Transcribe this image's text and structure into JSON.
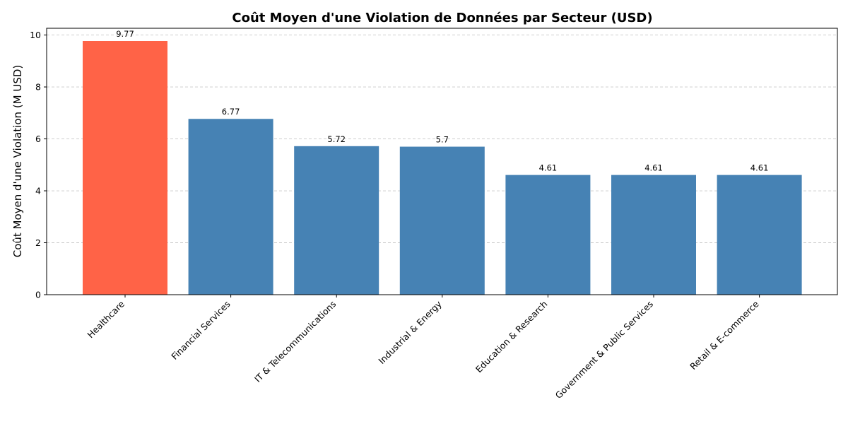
{
  "chart_data": {
    "type": "bar",
    "title": "Coût Moyen d'une Violation de Données par Secteur (USD)",
    "xlabel": "",
    "ylabel": "Coût Moyen d'une Violation (M USD)",
    "categories": [
      "Healthcare",
      "Financial Services",
      "IT & Telecommunications",
      "Industrial & Energy",
      "Education & Research",
      "Government & Public Services",
      "Retail & E-commerce"
    ],
    "values": [
      9.77,
      6.77,
      5.72,
      5.7,
      4.61,
      4.61,
      4.61
    ],
    "data_labels": [
      "9.77",
      "6.77",
      "5.72",
      "5.7",
      "4.61",
      "4.61",
      "4.61"
    ],
    "bar_colors": [
      "#FF6347",
      "#4682B4",
      "#4682B4",
      "#4682B4",
      "#4682B4",
      "#4682B4",
      "#4682B4"
    ],
    "ylim": [
      0,
      10.26
    ],
    "yticks": [
      0,
      2,
      4,
      6,
      8,
      10
    ],
    "grid": "y-dashed",
    "legend": "none"
  }
}
